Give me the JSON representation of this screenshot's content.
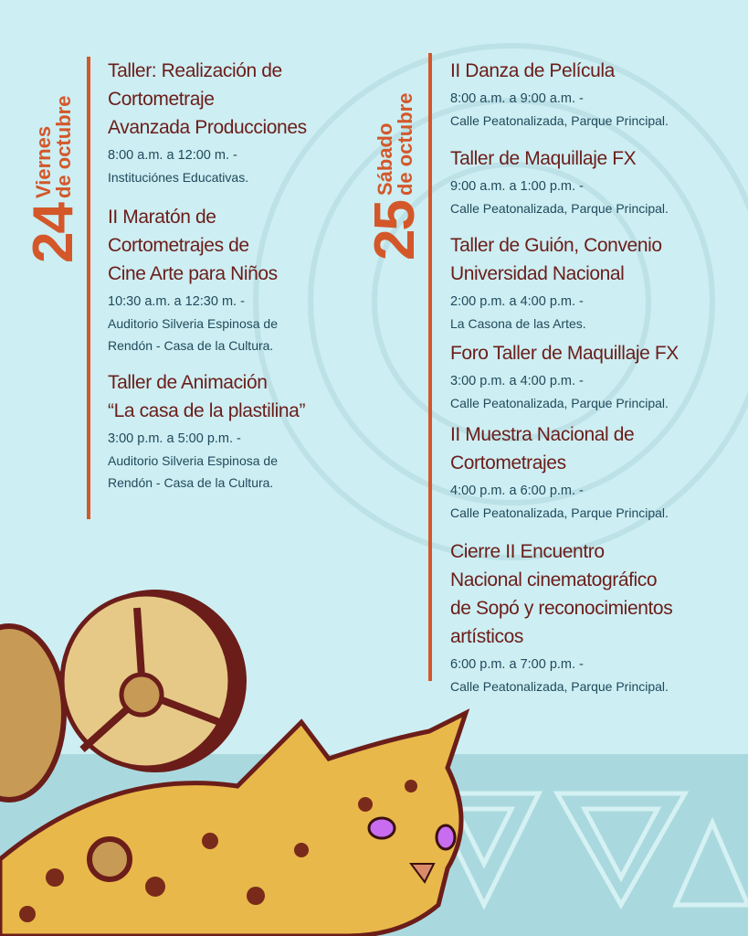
{
  "colors": {
    "background": "#cdeef2",
    "accent": "#d4572a",
    "title": "#6b1d1a",
    "details": "#1f4a5c"
  },
  "day1": {
    "number": "24",
    "weekday": "Viernes",
    "month": "de octubre",
    "events": [
      {
        "title": [
          "Taller: Realización de",
          "Cortometraje",
          "Avanzada Producciones"
        ],
        "time": "8:00 a.m. a 12:00 m.  -",
        "place": [
          "Instituciónes Educativas."
        ]
      },
      {
        "title": [
          "II Maratón de",
          "Cortometrajes de",
          "Cine Arte para Niños"
        ],
        "time": "10:30 a.m. a 12:30 m.  -",
        "place": [
          "Auditorio Silveria Espinosa de",
          "Rendón - Casa de la Cultura."
        ]
      },
      {
        "title": [
          "Taller de Animación",
          "“La casa de la plastilina”"
        ],
        "time": "3:00 p.m. a 5:00 p.m.  -",
        "place": [
          "Auditorio Silveria Espinosa de",
          "Rendón - Casa de la Cultura."
        ]
      }
    ]
  },
  "day2": {
    "number": "25",
    "weekday": "Sábado",
    "month": "de octubre",
    "events": [
      {
        "title": [
          "II Danza de Película"
        ],
        "time": "8:00 a.m. a 9:00 a.m.  -",
        "place": [
          "Calle Peatonalizada, Parque Principal."
        ]
      },
      {
        "title": [
          "Taller de Maquillaje FX"
        ],
        "time": "9:00 a.m. a 1:00 p.m.  -",
        "place": [
          "Calle Peatonalizada, Parque Principal."
        ]
      },
      {
        "title": [
          "Taller de Guión, Convenio",
          "Universidad Nacional"
        ],
        "time": "2:00 p.m. a 4:00 p.m.  -",
        "place": [
          "La Casona de las Artes."
        ]
      },
      {
        "title": [
          "Foro Taller de Maquillaje FX"
        ],
        "time": "3:00 p.m. a 4:00 p.m.  -",
        "place": [
          "Calle Peatonalizada, Parque Principal."
        ]
      },
      {
        "title": [
          "II Muestra Nacional de",
          "Cortometrajes"
        ],
        "time": "4:00 p.m. a 6:00 p.m.  -",
        "place": [
          "Calle Peatonalizada, Parque Principal."
        ]
      },
      {
        "title": [
          "Cierre II Encuentro",
          "Nacional cinematográfico",
          "de Sopó y reconocimientos",
          "artísticos"
        ],
        "time": "6:00 p.m. a 7:00 p.m.  -",
        "place": [
          "Calle Peatonalizada, Parque Principal."
        ]
      }
    ]
  }
}
